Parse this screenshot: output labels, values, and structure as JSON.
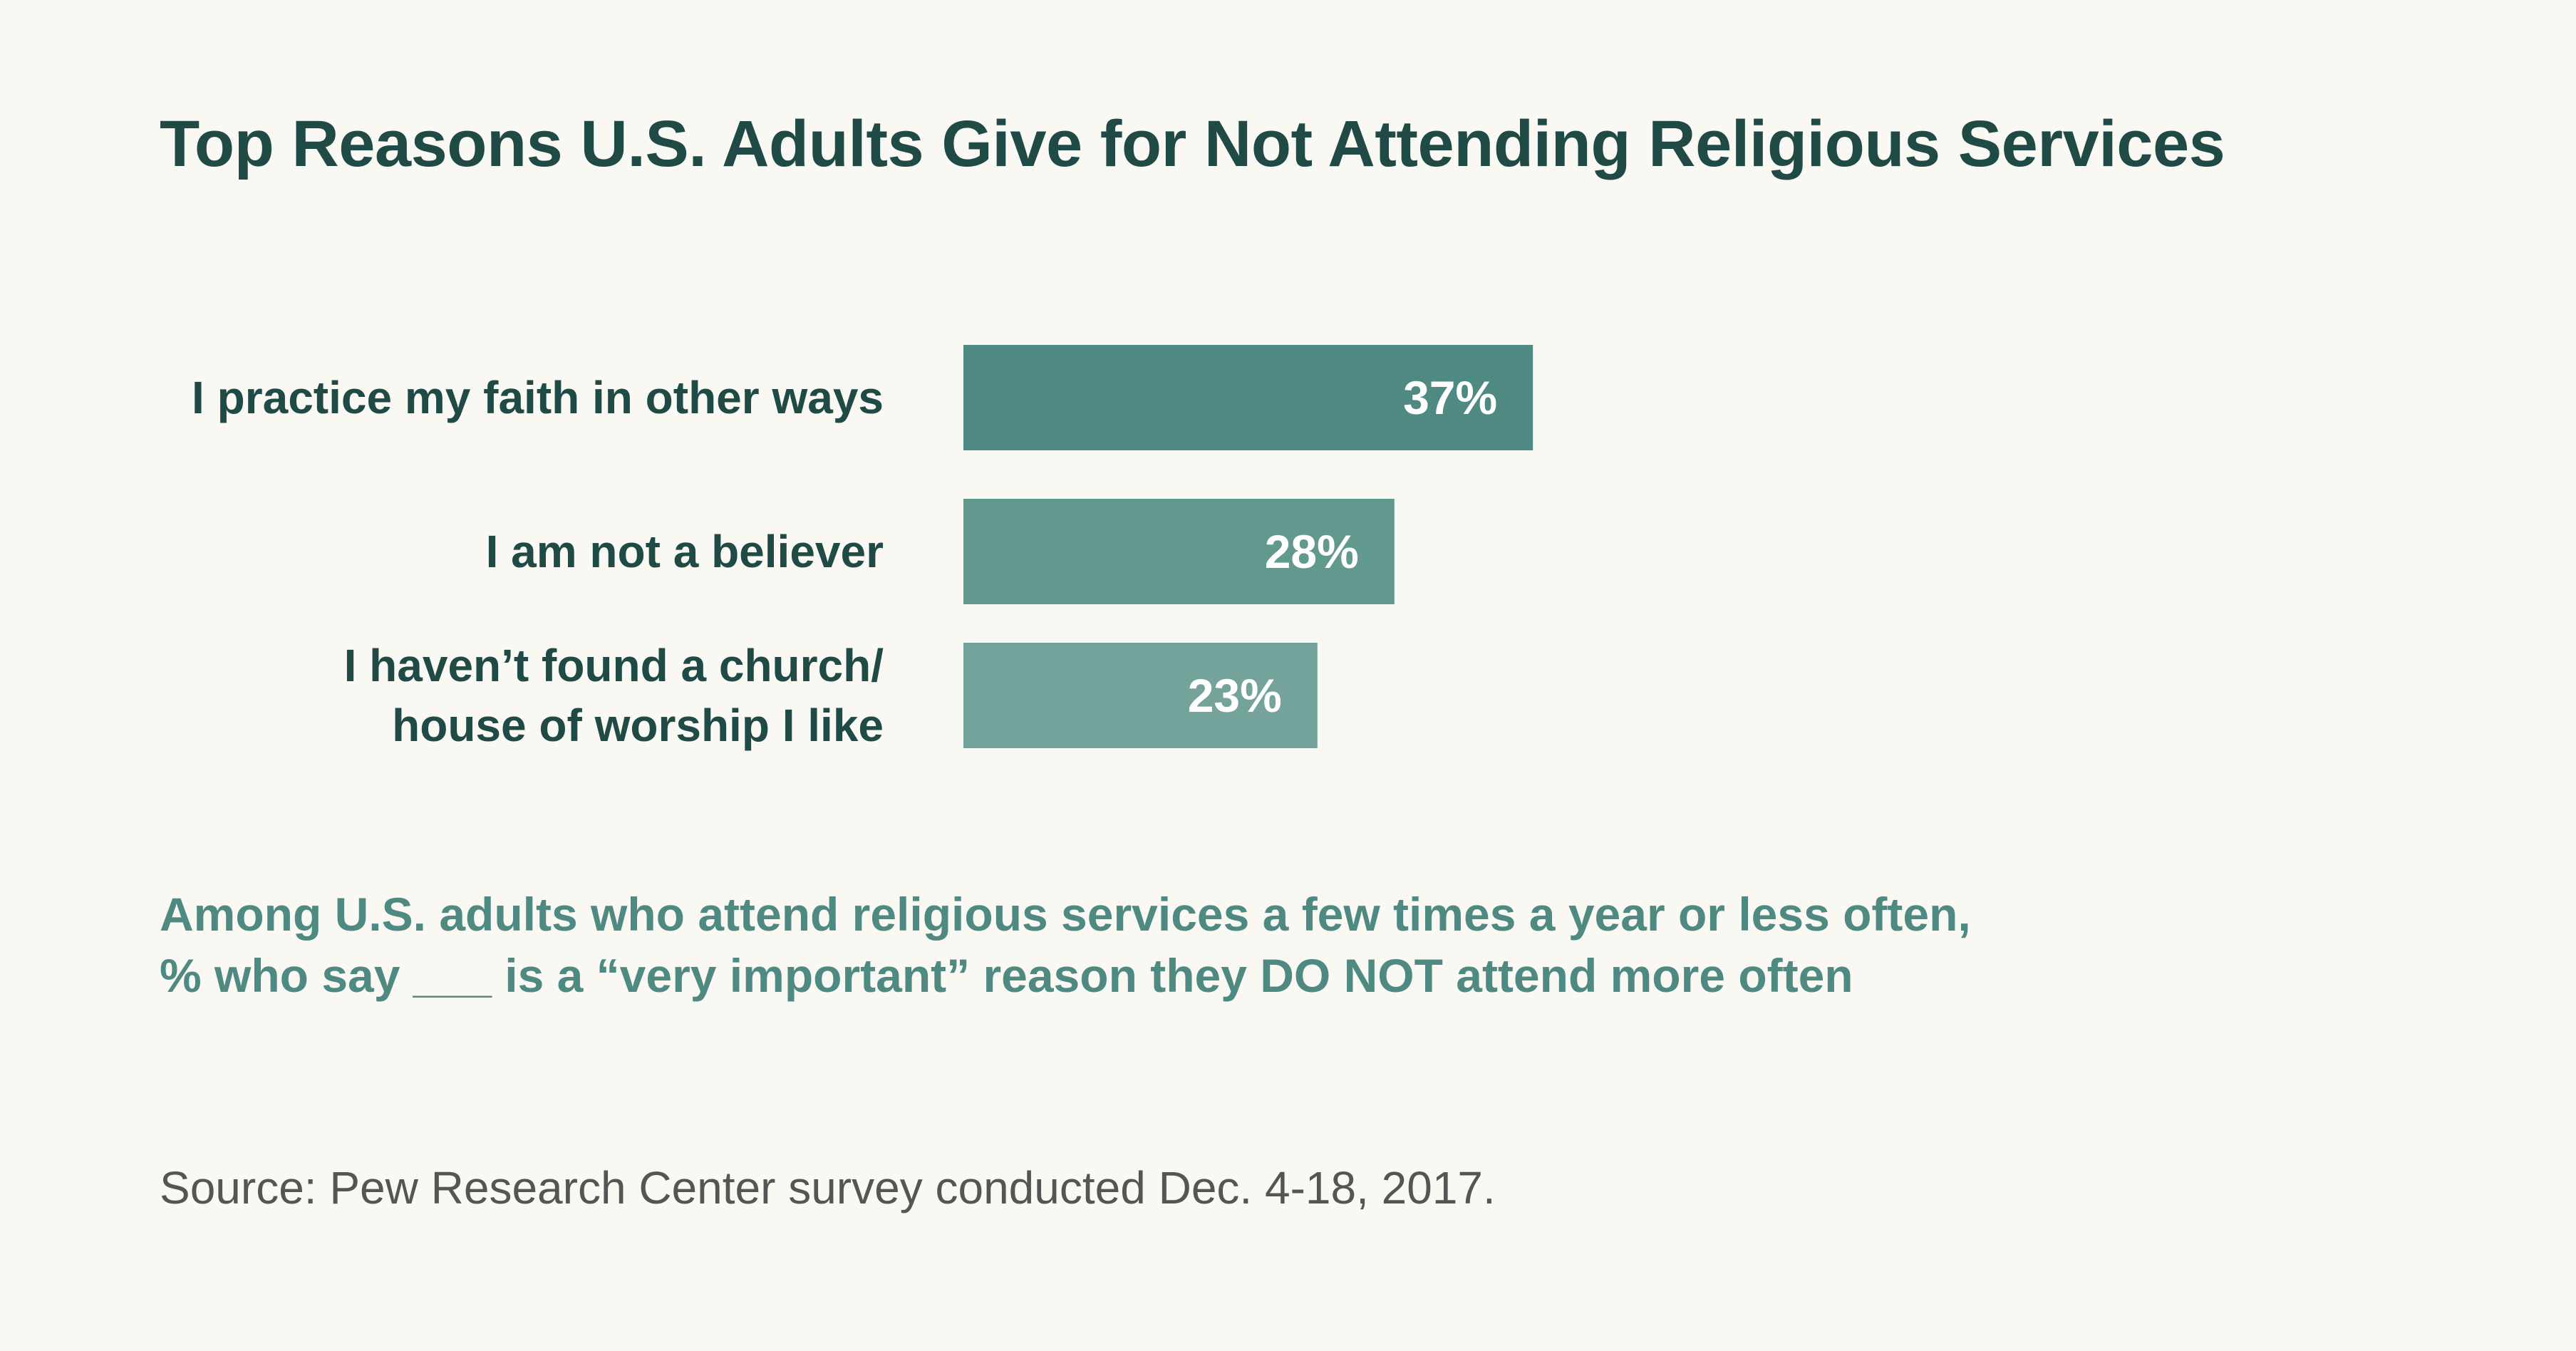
{
  "chart_data": {
    "type": "bar",
    "orientation": "horizontal",
    "title": "Top Reasons U.S. Adults Give for Not Attending Religious Services",
    "categories": [
      [
        "I practice my faith in other ways"
      ],
      [
        "I am not a believer"
      ],
      [
        "I haven’t found a church/",
        "house of worship I like"
      ]
    ],
    "values": [
      37,
      28,
      23
    ],
    "value_labels": [
      "37%",
      "28%",
      "23%"
    ],
    "bar_colors": [
      "#4e8a82",
      "#62998f",
      "#74a39b"
    ],
    "xlim": [
      0,
      100
    ],
    "grid": false,
    "legend": "none"
  },
  "subtitle": {
    "line1": "Among U.S. adults who attend religious services a few times a year or less often,",
    "line2": "% who say ___ is a “very important” reason they DO NOT attend more often"
  },
  "source": "Source: Pew Research Center survey conducted Dec. 4-18, 2017."
}
